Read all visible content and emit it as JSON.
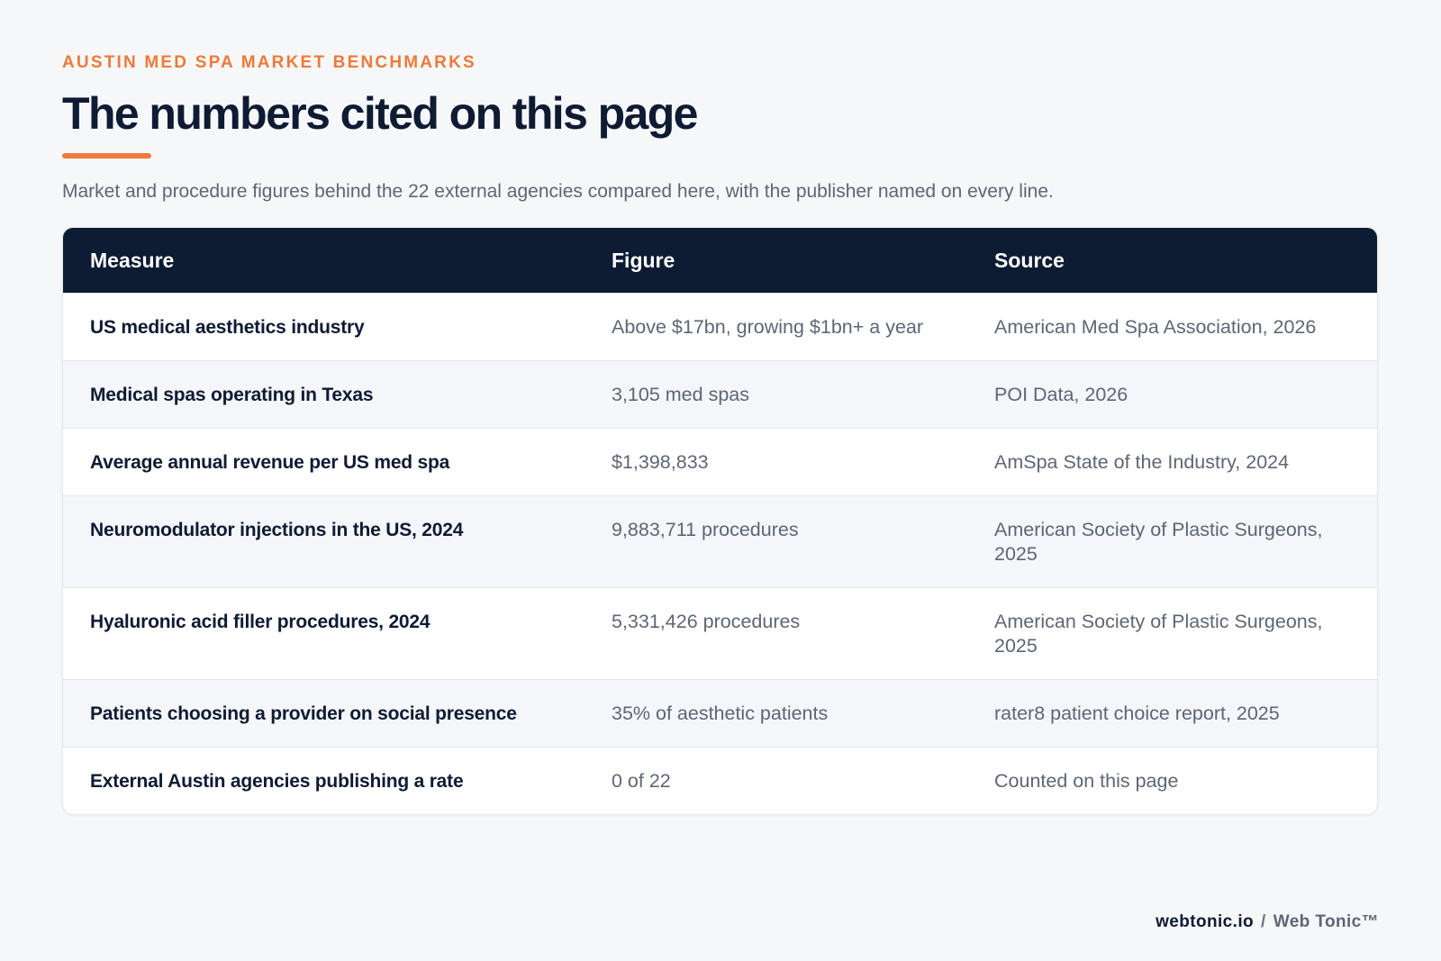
{
  "header": {
    "eyebrow": "AUSTIN MED SPA MARKET BENCHMARKS",
    "title": "The numbers cited on this page",
    "subtitle": "Market and procedure figures behind the 22 external agencies compared here, with the publisher named on every line."
  },
  "colors": {
    "accent": "#ee7a3a",
    "header_bg": "#0d1b33",
    "text_dark": "#0f1b33",
    "text_muted": "#5d6675"
  },
  "table": {
    "columns": [
      "Measure",
      "Figure",
      "Source"
    ],
    "rows": [
      {
        "measure": "US medical aesthetics industry",
        "figure": "Above $17bn, growing $1bn+ a year",
        "source": "American Med Spa Association, 2026"
      },
      {
        "measure": "Medical spas operating in Texas",
        "figure": "3,105 med spas",
        "source": "POI Data, 2026"
      },
      {
        "measure": "Average annual revenue per US med spa",
        "figure": "$1,398,833",
        "source": "AmSpa State of the Industry, 2024"
      },
      {
        "measure": "Neuromodulator injections in the US, 2024",
        "figure": "9,883,711 procedures",
        "source": "American Society of Plastic Surgeons, 2025"
      },
      {
        "measure": "Hyaluronic acid filler procedures, 2024",
        "figure": "5,331,426 procedures",
        "source": "American Society of Plastic Surgeons, 2025"
      },
      {
        "measure": "Patients choosing a provider on social presence",
        "figure": "35% of aesthetic patients",
        "source": "rater8 patient choice report, 2025"
      },
      {
        "measure": "External Austin agencies publishing a rate",
        "figure": "0 of 22",
        "source": "Counted on this page"
      }
    ]
  },
  "footer": {
    "domain": "webtonic.io",
    "separator": "/",
    "brand": "Web Tonic™"
  }
}
